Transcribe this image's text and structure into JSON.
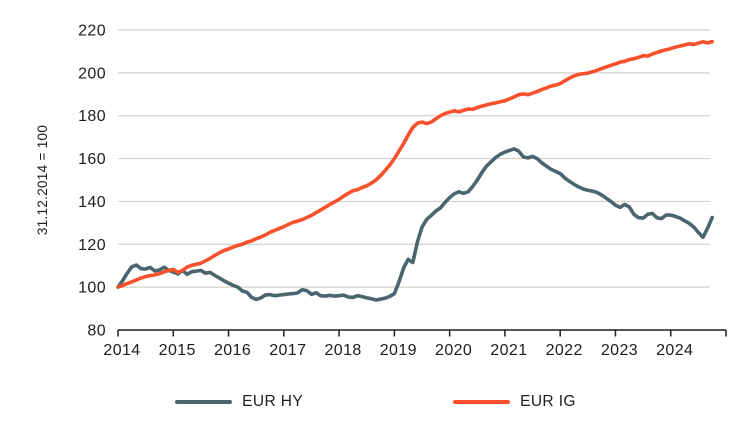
{
  "chart_data": {
    "type": "line",
    "title": "",
    "xlabel": "",
    "ylabel": "31.12.2014 = 100",
    "xlim": [
      2014,
      2025
    ],
    "ylim": [
      80,
      220
    ],
    "grid": true,
    "legend_position": "bottom",
    "x_tick_years": [
      2014,
      2015,
      2016,
      2017,
      2018,
      2019,
      2020,
      2021,
      2022,
      2023,
      2024,
      2025
    ],
    "x_tick_labels": [
      "2014",
      "2015",
      "2016",
      "2017",
      "2018",
      "2019",
      "2020",
      "2021",
      "2022",
      "2023",
      "2024"
    ],
    "y_ticks": [
      80,
      100,
      120,
      140,
      160,
      180,
      200,
      220
    ],
    "x_start_year": 2014.0,
    "x_points_per_year": 12,
    "colors": {
      "grid": "#ccc6be",
      "axis": "#1d1d1b",
      "text": "#1d1d1b",
      "background": "#ffffff"
    },
    "series": [
      {
        "name": "EUR HY",
        "color": "#4a656e",
        "values": [
          100.0,
          103.0,
          106.5,
          109.5,
          110.3,
          108.6,
          108.4,
          109.2,
          107.6,
          108.0,
          109.3,
          107.8,
          107.0,
          106.2,
          107.8,
          106.0,
          107.2,
          107.5,
          107.8,
          106.5,
          106.9,
          105.5,
          104.3,
          103.0,
          101.9,
          100.8,
          100.0,
          98.2,
          97.6,
          95.2,
          94.3,
          95.0,
          96.3,
          96.5,
          96.0,
          96.3,
          96.5,
          96.8,
          97.0,
          97.3,
          98.8,
          98.4,
          96.6,
          97.4,
          96.0,
          95.8,
          96.2,
          95.8,
          96.0,
          96.3,
          95.4,
          95.2,
          96.0,
          95.6,
          95.0,
          94.6,
          94.0,
          94.4,
          94.9,
          95.7,
          97.0,
          102.5,
          109.0,
          113.0,
          111.5,
          121.0,
          128.0,
          131.5,
          133.5,
          135.5,
          137.0,
          139.5,
          141.8,
          143.5,
          144.5,
          143.8,
          144.5,
          147.0,
          150.0,
          153.5,
          156.5,
          158.5,
          160.5,
          162.0,
          163.0,
          163.8,
          164.5,
          163.5,
          160.8,
          160.3,
          161.0,
          160.0,
          158.0,
          156.5,
          155.0,
          154.0,
          153.0,
          151.0,
          149.4,
          148.0,
          146.8,
          145.8,
          145.2,
          144.8,
          144.2,
          143.0,
          141.5,
          140.0,
          138.2,
          137.2,
          138.6,
          137.4,
          134.0,
          132.4,
          132.2,
          134.0,
          134.4,
          132.4,
          132.0,
          133.6,
          133.6,
          133.0,
          132.2,
          131.0,
          129.8,
          128.0,
          125.5,
          123.3,
          127.5,
          132.5
        ]
      },
      {
        "name": "EUR IG",
        "color": "#f7502b",
        "values": [
          100.0,
          100.8,
          101.7,
          102.5,
          103.4,
          104.2,
          104.9,
          105.4,
          105.7,
          106.3,
          107.1,
          107.8,
          108.3,
          106.9,
          107.8,
          109.3,
          110.2,
          110.6,
          111.2,
          112.3,
          113.4,
          114.8,
          116.0,
          117.1,
          117.8,
          118.7,
          119.5,
          120.0,
          121.0,
          121.6,
          122.6,
          123.4,
          124.4,
          125.6,
          126.5,
          127.3,
          128.2,
          129.3,
          130.2,
          130.8,
          131.5,
          132.5,
          133.5,
          134.8,
          136.0,
          137.3,
          138.6,
          139.8,
          141.0,
          142.5,
          143.8,
          145.0,
          145.5,
          146.5,
          147.3,
          148.5,
          150.0,
          152.0,
          154.5,
          157.0,
          160.0,
          163.5,
          167.0,
          171.0,
          174.5,
          176.5,
          177.0,
          176.3,
          177.0,
          178.5,
          180.0,
          181.0,
          181.7,
          182.3,
          181.8,
          182.5,
          183.2,
          183.0,
          183.8,
          184.5,
          185.0,
          185.6,
          186.0,
          186.5,
          187.0,
          187.8,
          188.8,
          189.8,
          190.2,
          189.8,
          190.5,
          191.3,
          192.2,
          193.0,
          193.8,
          194.3,
          195.0,
          196.3,
          197.5,
          198.6,
          199.3,
          199.6,
          199.9,
          200.5,
          201.2,
          202.0,
          202.8,
          203.5,
          204.2,
          205.0,
          205.4,
          206.2,
          206.6,
          207.2,
          208.0,
          207.8,
          208.8,
          209.5,
          210.2,
          210.8,
          211.3,
          212.0,
          212.5,
          213.0,
          213.6,
          213.2,
          213.9,
          214.5,
          214.0,
          214.6
        ]
      }
    ]
  }
}
